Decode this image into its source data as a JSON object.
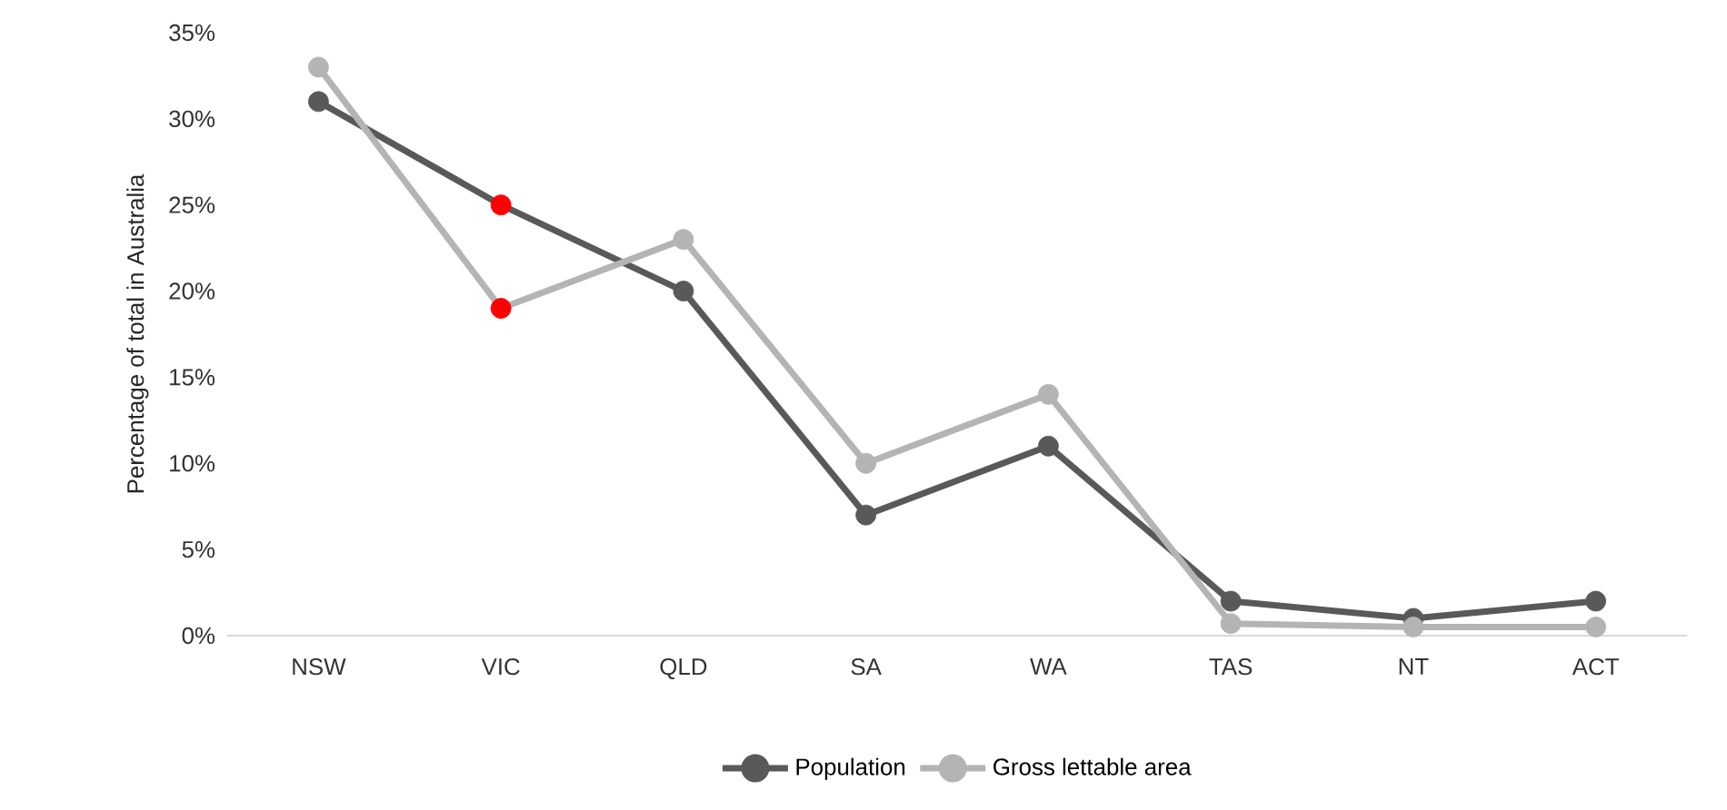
{
  "chart_data": {
    "type": "line",
    "ylabel": "Percentage of total in Australia",
    "categories": [
      "NSW",
      "VIC",
      "QLD",
      "SA",
      "WA",
      "TAS",
      "NT",
      "ACT"
    ],
    "series": [
      {
        "name": "Population",
        "color": "#595959",
        "colors": [
          "#595959",
          "#ff0000",
          "#595959",
          "#595959",
          "#595959",
          "#595959",
          "#595959",
          "#595959"
        ],
        "values": [
          31,
          25,
          20,
          7,
          11,
          2,
          1,
          2
        ]
      },
      {
        "name": "Gross lettable area",
        "color": "#b4b4b4",
        "colors": [
          "#b4b4b4",
          "#ff0000",
          "#b4b4b4",
          "#b4b4b4",
          "#b4b4b4",
          "#b4b4b4",
          "#b4b4b4",
          "#b4b4b4"
        ],
        "values": [
          33,
          19,
          23,
          10,
          14,
          0.7,
          0.5,
          0.5
        ]
      }
    ],
    "ylim": [
      0,
      35
    ],
    "yticks": [
      {
        "value": 0,
        "label": "0%"
      },
      {
        "value": 5,
        "label": "5%"
      },
      {
        "value": 10,
        "label": "10%"
      },
      {
        "value": 15,
        "label": "15%"
      },
      {
        "value": 20,
        "label": "20%"
      },
      {
        "value": 25,
        "label": "25%"
      },
      {
        "value": 30,
        "label": "30%"
      },
      {
        "value": 35,
        "label": "35%"
      }
    ],
    "legend": "bottom",
    "marker": "circle",
    "line_style": "solid",
    "grid": false
  }
}
